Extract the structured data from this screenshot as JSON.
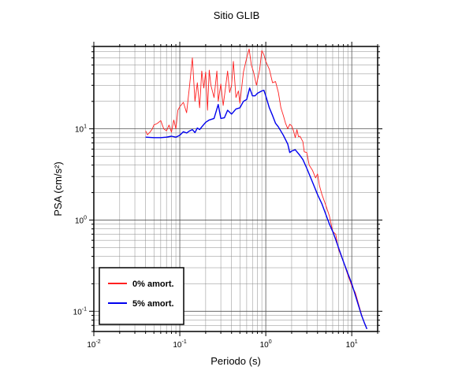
{
  "chart_data": {
    "type": "line",
    "title": "Sitio GLIB",
    "xlabel": "Periodo (s)",
    "ylabel": "PSA (cm/s²)",
    "xscale": "log",
    "yscale": "log",
    "xlim": [
      0.01,
      20
    ],
    "ylim": [
      0.06,
      80
    ],
    "grid": true,
    "legend_position": "bottom-left",
    "x_ticks": [
      {
        "base": "10",
        "exp": "-2"
      },
      {
        "base": "10",
        "exp": "-1"
      },
      {
        "base": "10",
        "exp": "0"
      },
      {
        "base": "10",
        "exp": "1"
      }
    ],
    "y_ticks": [
      {
        "base": "10",
        "exp": "-1"
      },
      {
        "base": "10",
        "exp": "0"
      },
      {
        "base": "10",
        "exp": "1"
      }
    ],
    "series": [
      {
        "name": "0% amort.",
        "color": "#ff2020",
        "points": [
          [
            0.04,
            9.5
          ],
          [
            0.042,
            8.6
          ],
          [
            0.045,
            9.2
          ],
          [
            0.048,
            10.0
          ],
          [
            0.05,
            11.0
          ],
          [
            0.055,
            11.5
          ],
          [
            0.06,
            12.3
          ],
          [
            0.065,
            10.0
          ],
          [
            0.07,
            9.5
          ],
          [
            0.075,
            11.0
          ],
          [
            0.08,
            9.2
          ],
          [
            0.085,
            12.5
          ],
          [
            0.09,
            10.0
          ],
          [
            0.095,
            16.0
          ],
          [
            0.1,
            17.5
          ],
          [
            0.11,
            19.5
          ],
          [
            0.12,
            15.0
          ],
          [
            0.13,
            30.0
          ],
          [
            0.14,
            60.0
          ],
          [
            0.15,
            20.0
          ],
          [
            0.16,
            32.0
          ],
          [
            0.17,
            17.0
          ],
          [
            0.18,
            43.0
          ],
          [
            0.19,
            28.0
          ],
          [
            0.2,
            42.0
          ],
          [
            0.21,
            16.0
          ],
          [
            0.22,
            44.0
          ],
          [
            0.23,
            30.0
          ],
          [
            0.25,
            22.0
          ],
          [
            0.27,
            43.0
          ],
          [
            0.28,
            20.0
          ],
          [
            0.3,
            31.0
          ],
          [
            0.32,
            18.0
          ],
          [
            0.34,
            28.0
          ],
          [
            0.36,
            43.0
          ],
          [
            0.38,
            25.0
          ],
          [
            0.4,
            30.0
          ],
          [
            0.42,
            55.0
          ],
          [
            0.45,
            22.0
          ],
          [
            0.48,
            26.0
          ],
          [
            0.5,
            19.0
          ],
          [
            0.55,
            42.0
          ],
          [
            0.6,
            60.0
          ],
          [
            0.64,
            75.0
          ],
          [
            0.68,
            50.0
          ],
          [
            0.72,
            42.0
          ],
          [
            0.78,
            30.0
          ],
          [
            0.85,
            45.0
          ],
          [
            0.9,
            72.0
          ],
          [
            0.95,
            65.0
          ],
          [
            1.0,
            55.0
          ],
          [
            1.1,
            45.0
          ],
          [
            1.2,
            32.0
          ],
          [
            1.3,
            33.0
          ],
          [
            1.4,
            25.0
          ],
          [
            1.5,
            17.0
          ],
          [
            1.6,
            14.0
          ],
          [
            1.7,
            11.5
          ],
          [
            1.8,
            10.0
          ],
          [
            1.9,
            11.2
          ],
          [
            2.0,
            10.8
          ],
          [
            2.1,
            9.5
          ],
          [
            2.2,
            8.0
          ],
          [
            2.3,
            9.8
          ],
          [
            2.4,
            8.2
          ],
          [
            2.5,
            8.3
          ],
          [
            2.7,
            7.2
          ],
          [
            2.8,
            5.6
          ],
          [
            3.0,
            5.5
          ],
          [
            3.2,
            4.0
          ],
          [
            3.5,
            3.5
          ],
          [
            3.8,
            2.9
          ],
          [
            4.0,
            3.2
          ],
          [
            4.2,
            2.4
          ],
          [
            4.5,
            1.9
          ],
          [
            5.0,
            1.45
          ],
          [
            5.5,
            1.1
          ],
          [
            6.0,
            0.75
          ],
          [
            6.5,
            0.7
          ],
          [
            7.0,
            0.48
          ],
          [
            8.0,
            0.35
          ],
          [
            9.0,
            0.25
          ],
          [
            10.0,
            0.19
          ],
          [
            11.0,
            0.16
          ],
          [
            12.0,
            0.12
          ],
          [
            13.0,
            0.092
          ],
          [
            14.0,
            0.074
          ],
          [
            15.0,
            0.064
          ]
        ]
      },
      {
        "name": "5% amort.",
        "color": "#0000ee",
        "points": [
          [
            0.04,
            8.1
          ],
          [
            0.05,
            8.0
          ],
          [
            0.06,
            8.0
          ],
          [
            0.07,
            8.1
          ],
          [
            0.08,
            8.3
          ],
          [
            0.09,
            8.1
          ],
          [
            0.1,
            8.5
          ],
          [
            0.11,
            9.3
          ],
          [
            0.12,
            9.0
          ],
          [
            0.13,
            9.5
          ],
          [
            0.14,
            9.8
          ],
          [
            0.15,
            9.1
          ],
          [
            0.16,
            10.2
          ],
          [
            0.17,
            9.8
          ],
          [
            0.18,
            10.5
          ],
          [
            0.2,
            11.8
          ],
          [
            0.22,
            12.5
          ],
          [
            0.25,
            13.0
          ],
          [
            0.28,
            18.5
          ],
          [
            0.3,
            13.0
          ],
          [
            0.33,
            13.2
          ],
          [
            0.36,
            16.0
          ],
          [
            0.4,
            14.5
          ],
          [
            0.45,
            16.5
          ],
          [
            0.5,
            17.0
          ],
          [
            0.55,
            20.0
          ],
          [
            0.6,
            21.0
          ],
          [
            0.65,
            28.0
          ],
          [
            0.7,
            23.0
          ],
          [
            0.75,
            23.0
          ],
          [
            0.8,
            24.5
          ],
          [
            0.9,
            26.0
          ],
          [
            0.95,
            26.5
          ],
          [
            1.0,
            23.0
          ],
          [
            1.1,
            17.0
          ],
          [
            1.2,
            14.0
          ],
          [
            1.3,
            11.5
          ],
          [
            1.4,
            10.5
          ],
          [
            1.6,
            8.5
          ],
          [
            1.8,
            6.8
          ],
          [
            1.9,
            5.5
          ],
          [
            2.0,
            5.7
          ],
          [
            2.2,
            5.9
          ],
          [
            2.5,
            5.1
          ],
          [
            2.7,
            4.6
          ],
          [
            3.0,
            3.7
          ],
          [
            3.5,
            2.6
          ],
          [
            4.0,
            1.9
          ],
          [
            4.5,
            1.5
          ],
          [
            5.0,
            1.15
          ],
          [
            5.5,
            0.9
          ],
          [
            6.0,
            0.75
          ],
          [
            6.5,
            0.61
          ],
          [
            7.0,
            0.5
          ],
          [
            8.0,
            0.35
          ],
          [
            9.0,
            0.26
          ],
          [
            10.0,
            0.2
          ],
          [
            11.0,
            0.15
          ],
          [
            12.0,
            0.115
          ],
          [
            13.0,
            0.09
          ],
          [
            14.0,
            0.075
          ],
          [
            15.0,
            0.064
          ]
        ]
      }
    ]
  }
}
